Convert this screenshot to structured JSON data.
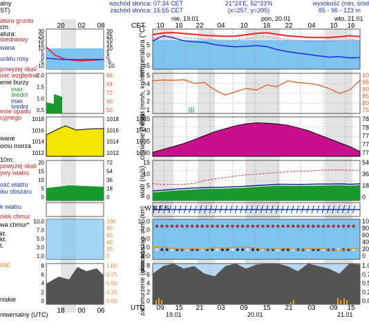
{
  "header": {
    "sunrise": "wschód słońca: 07:34 CET",
    "sunset": "zachód słońca: 15:55 CET",
    "coords": "21°24'E, 52°33'N",
    "grid": "(x=257, y=395)",
    "altitude": "wysokość (min, środ",
    "altitude_values": "85 - 96 - 123 m",
    "cet": "CET",
    "utc": "UTC"
  },
  "days": {
    "top": [
      "nie, 19.01",
      "pon, 20.01",
      "wto, 21.01"
    ],
    "bottom": [
      "19.01",
      "20.01",
      "21.01"
    ]
  },
  "hours": {
    "top": [
      "10",
      "16",
      "22",
      "04",
      "10",
      "16",
      "22",
      "04",
      "10",
      "16"
    ],
    "bottom": [
      "09",
      "15",
      "21",
      "03",
      "09",
      "15",
      "21",
      "03",
      "09",
      "15"
    ]
  },
  "legend": {
    "top_cut": [
      "alny",
      "ST)"
    ],
    "temp_block": [
      "atura gruntu",
      "cm",
      "atura:",
      "średniowy",
      "wana",
      "unktu rosy"
    ],
    "opad_block": [
      "powyżej skali",
      "ość względna",
      "enie burzy",
      "max",
      "średni",
      "max",
      "średni",
      "enie opadu",
      "cyjnego"
    ],
    "pres_block": [
      "wane",
      "omu morza"
    ],
    "wind_block": [
      "10m:",
      "powyżej skali",
      "ywy wiatru",
      "ość wiatru",
      "iku obszaru"
    ],
    "dir_block": [
      "k wiatru"
    ],
    "cloud_block": [
      "olek chmur",
      "wa chmur*",
      "kt.",
      "kt.",
      "t."
    ],
    "vis_block": [
      "ość",
      "niskie"
    ],
    "bottom": "niwersalny (UTC)"
  },
  "mini": {
    "top_hours": [
      "20",
      "02",
      "08"
    ],
    "bottom_hours": [
      "18",
      "00",
      "06"
    ]
  },
  "axes": {
    "temp": {
      "label": "temperatura (°C)",
      "left_ticks": [
        "5",
        "0",
        "-5"
      ],
      "mini_left": [
        "30",
        "25",
        "20",
        "15",
        "10",
        "5",
        "0",
        "-5",
        "-10"
      ],
      "mini_right": [
        "30",
        "25",
        "20",
        "15",
        "10",
        "5",
        "0",
        "-5",
        "-10"
      ]
    },
    "precip": {
      "label": "opad (mm/h, kg/m²/h)",
      "left_ticks": [
        "5",
        "4",
        "3",
        "2",
        "1"
      ],
      "right_ticks": [
        "10",
        "95",
        "90",
        "85",
        "80",
        "75"
      ],
      "mini_left": [
        "2.0",
        "1.5",
        "1.0",
        "0.5"
      ],
      "mini_right": [
        "96",
        "84",
        "72",
        "60",
        "50"
      ]
    },
    "pressure": {
      "label": "ciśnienie (hPa)",
      "left_ticks": [
        "1045",
        "1040",
        "1035",
        "1030"
      ],
      "right_ticks": [
        "78",
        "78",
        "77",
        "77",
        "77"
      ],
      "mini_ticks": [
        "1018",
        "1016",
        "1014",
        "1012"
      ]
    },
    "wind": {
      "label": "wiatr (m/s)",
      "left_ticks": [
        "15",
        "10",
        "5",
        "0"
      ],
      "right_ticks": [
        "54",
        "36",
        "18",
        "0"
      ],
      "mini_left": [
        "20",
        "15",
        "10",
        "5",
        "0"
      ],
      "mini_right": [
        "72",
        "54",
        "36",
        "18",
        "0"
      ]
    },
    "dir": {
      "label": "W N E S"
    },
    "cloud": {
      "label": "pion. rozciąg. chm. (km)",
      "left_ticks": [
        "10.0",
        "7.0",
        "5.0",
        "3.0",
        "1.0"
      ],
      "right_ticks": [
        "100",
        "80",
        "60",
        "40",
        "20",
        "0"
      ],
      "mini_left": [
        "10.0",
        "7.0",
        "5.0",
        "3.0",
        "1.0"
      ],
      "mini_right": [
        "100",
        "80",
        "60",
        "40",
        "20",
        "0"
      ]
    },
    "vis": {
      "label": "zachmurzenie (oktanty)",
      "left_ticks": [
        "8",
        "6",
        "4",
        "2",
        "0"
      ],
      "right_ticks": [
        "1.00",
        "0.75",
        "0.50",
        "0.25",
        "0.00"
      ],
      "mini_left": [
        "8",
        "6",
        "4",
        "2",
        "0"
      ],
      "mini_right": [
        "1.00",
        "0.75",
        "0.50",
        "0.25",
        "0.00"
      ]
    }
  },
  "colors": {
    "grid_gray": "#d4d4d4",
    "sky": "#7ec4f0",
    "temp_red": "#ee2222",
    "dew_blue": "#2233dd",
    "pressure_fill": "#c8108c",
    "pressure_yellow": "#f2e600",
    "wind_green": "#1a9a2e",
    "humidity_orange": "#e06020"
  },
  "chart_data": [
    {
      "type": "line",
      "title": "",
      "ylabel": "temperatura (°C)",
      "ylim": [
        -8,
        8
      ],
      "series": [
        {
          "values": [
            5.8,
            6.4,
            6.6,
            6.2,
            5.9,
            5.5,
            5.3,
            5.1,
            5.2,
            5.7,
            6.3,
            6.5,
            5.9,
            5.3,
            5.0,
            4.7,
            4.6,
            4.6,
            4.9,
            5.3,
            5.0
          ]
        },
        {
          "values": [
            3.2,
            5.3,
            4.5,
            3.3,
            2.9,
            2.7,
            1.8,
            1.3,
            0.9,
            1.1,
            1.4,
            1.0,
            -0.2,
            -1.0,
            -1.6,
            -2.1,
            -2.7,
            -3.2,
            -3.0,
            -3.5,
            -3.4
          ]
        }
      ]
    },
    {
      "type": "line",
      "title": "",
      "ylabel": "opad (mm/h, kg/m²/h)",
      "ylim": [
        0,
        5.5
      ],
      "series": [
        {
          "values": [
            93.5,
            94,
            93.8,
            94.2,
            92,
            92.5,
            88,
            85,
            87,
            89,
            88,
            91,
            90,
            93.5,
            92.5,
            92,
            91,
            89,
            86,
            88,
            93.8
          ]
        }
      ]
    },
    {
      "type": "area",
      "title": "",
      "ylabel": "ciśnienie (hPa)",
      "ylim": [
        1027,
        1047
      ],
      "series": [
        {
          "values": [
            1029,
            1030.5,
            1032,
            1033.5,
            1035.5,
            1037.5,
            1039.5,
            1041,
            1042.5,
            1043.5,
            1044,
            1043.8,
            1043.4,
            1042.8,
            1041.5,
            1040,
            1038,
            1036,
            1034,
            1032,
            1029.5
          ]
        }
      ]
    },
    {
      "type": "area",
      "title": "",
      "ylabel": "wiatr (m/s)",
      "ylim": [
        0,
        17
      ],
      "series": [
        {
          "values": [
            3.5,
            3.8,
            4.2,
            4.5,
            4.7,
            4.9,
            5.0,
            5.1,
            5.3,
            5.5,
            5.8,
            6.0,
            6.3,
            6.3,
            6.2,
            6.3,
            6.4,
            6.4,
            6.5,
            6.3,
            6.5
          ]
        },
        {
          "values": [
            7.2,
            6.8,
            6.9,
            6.8,
            7.3,
            8.5,
            9.2,
            9.8,
            10.4,
            10.9,
            11.2,
            11.6,
            11.8,
            12.2,
            12.4,
            12.5,
            12.8,
            12.9,
            13.0,
            12.8,
            12.9
          ]
        }
      ]
    },
    {
      "type": "area",
      "title": "",
      "ylabel": "zachmurzenie (oktanty)",
      "ylim": [
        0,
        8
      ],
      "series": [
        {
          "values": [
            6,
            7.5,
            8,
            7,
            7.5,
            6,
            5.5,
            7.5,
            8,
            7,
            7.8,
            8,
            8,
            7.5,
            6.5,
            8,
            7.5,
            7,
            6,
            8,
            7.8
          ]
        }
      ]
    }
  ]
}
